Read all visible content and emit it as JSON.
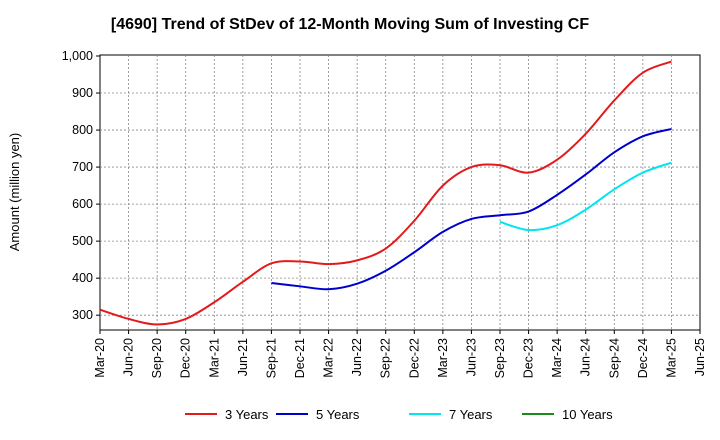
{
  "chart_data": {
    "type": "line",
    "title": "[4690]  Trend of StDev of 12-Month Moving Sum of Investing CF",
    "ylabel": "Amount (million yen)",
    "xlabel": "",
    "ylim": [
      260,
      1000
    ],
    "yticks": [
      300,
      400,
      500,
      600,
      700,
      800,
      900,
      1000
    ],
    "ytick_labels": [
      "300",
      "400",
      "500",
      "600",
      "700",
      "800",
      "900",
      "1,000"
    ],
    "x_ticks": [
      "Mar-20",
      "Jun-20",
      "Sep-20",
      "Dec-20",
      "Mar-21",
      "Jun-21",
      "Sep-21",
      "Dec-21",
      "Mar-22",
      "Jun-22",
      "Sep-22",
      "Dec-22",
      "Mar-23",
      "Jun-23",
      "Sep-23",
      "Dec-23",
      "Mar-24",
      "Jun-24",
      "Sep-24",
      "Dec-24",
      "Mar-25",
      "Jun-25"
    ],
    "grid": true,
    "legend_position": "bottom",
    "series": [
      {
        "name": "3 Years",
        "color": "#e31a1c",
        "x": [
          "Mar-20",
          "Jun-20",
          "Sep-20",
          "Dec-20",
          "Mar-21",
          "Jun-21",
          "Sep-21",
          "Dec-21",
          "Mar-22",
          "Jun-22",
          "Sep-22",
          "Dec-22",
          "Mar-23",
          "Jun-23",
          "Sep-23",
          "Dec-23",
          "Mar-24",
          "Jun-24",
          "Sep-24",
          "Dec-24",
          "Mar-25"
        ],
        "values": [
          315,
          290,
          275,
          290,
          335,
          390,
          440,
          445,
          438,
          448,
          480,
          555,
          650,
          700,
          705,
          685,
          720,
          790,
          880,
          955,
          985
        ]
      },
      {
        "name": "5 Years",
        "color": "#0000cc",
        "x": [
          "Sep-21",
          "Dec-21",
          "Mar-22",
          "Jun-22",
          "Sep-22",
          "Dec-22",
          "Mar-23",
          "Jun-23",
          "Sep-23",
          "Dec-23",
          "Mar-24",
          "Jun-24",
          "Sep-24",
          "Dec-24",
          "Mar-25"
        ],
        "values": [
          387,
          378,
          370,
          385,
          420,
          470,
          525,
          560,
          570,
          580,
          625,
          680,
          740,
          783,
          803
        ]
      },
      {
        "name": "7 Years",
        "color": "#00e5ee",
        "x": [
          "Sep-23",
          "Dec-23",
          "Mar-24",
          "Jun-24",
          "Sep-24",
          "Dec-24",
          "Mar-25"
        ],
        "values": [
          552,
          530,
          543,
          585,
          640,
          685,
          712
        ]
      },
      {
        "name": "10 Years",
        "color": "#1a8a1a",
        "x": [],
        "values": []
      }
    ]
  }
}
